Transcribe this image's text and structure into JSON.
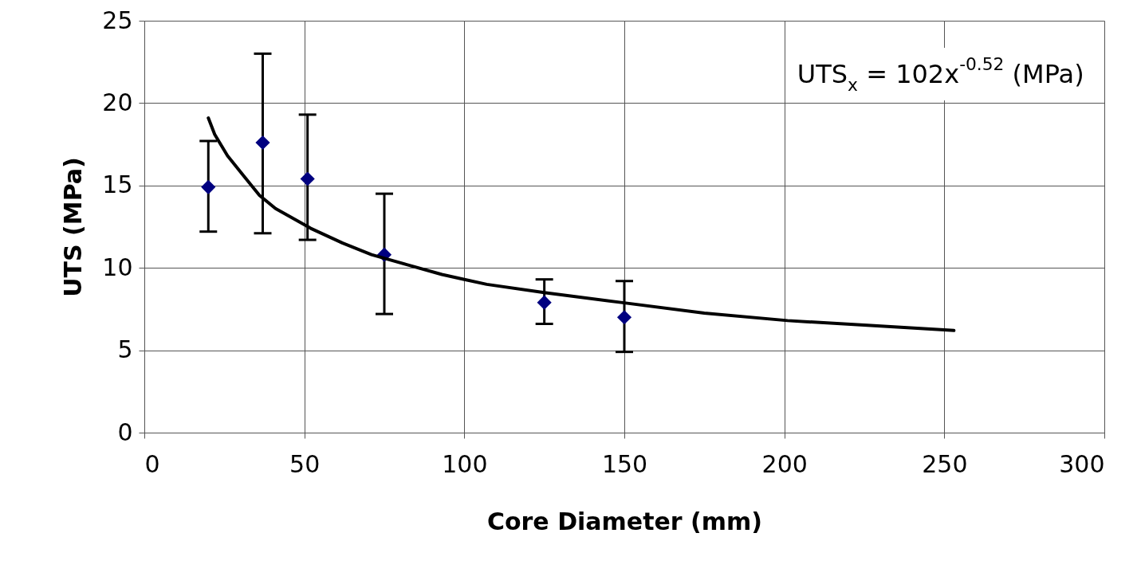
{
  "chart_data": {
    "type": "scatter",
    "xlabel": "Core Diameter (mm)",
    "ylabel": "UTS (MPa)",
    "annotations": [
      "UTS$_{x}$ = 102x$^{-0.52}$ (MPa)"
    ],
    "xlim": [
      0,
      300
    ],
    "xticks": [
      0,
      50,
      100,
      150,
      200,
      250,
      300
    ],
    "ylim": [
      0,
      25
    ],
    "yticks": [
      0,
      5,
      10,
      15,
      20,
      25
    ],
    "grid": true,
    "marker": "diamond",
    "series": [
      {
        "color": "#000080",
        "x": [
          20,
          37,
          51,
          75,
          125,
          150
        ],
        "values": [
          14.9,
          17.6,
          15.4,
          10.8,
          7.9,
          7.0
        ],
        "errors": [
          [
            12.2,
            17.7
          ],
          [
            12.1,
            23.0
          ],
          [
            11.7,
            19.3
          ],
          [
            7.2,
            14.5
          ],
          [
            6.6,
            9.3
          ],
          [
            4.9,
            9.2
          ]
        ]
      },
      {
        "type": "line",
        "color": "#000000",
        "marker": "none",
        "line_style": "solid",
        "x": [
          20,
          22,
          26,
          31,
          36,
          41,
          52,
          62,
          71,
          82,
          93,
          100,
          107,
          125,
          149,
          175,
          201,
          227,
          253
        ],
        "values": [
          19.1,
          18.1,
          16.8,
          15.6,
          14.4,
          13.6,
          12.4,
          11.5,
          10.8,
          10.2,
          9.6,
          9.3,
          9.0,
          8.5,
          7.9,
          7.25,
          6.8,
          6.5,
          6.2
        ]
      }
    ]
  }
}
